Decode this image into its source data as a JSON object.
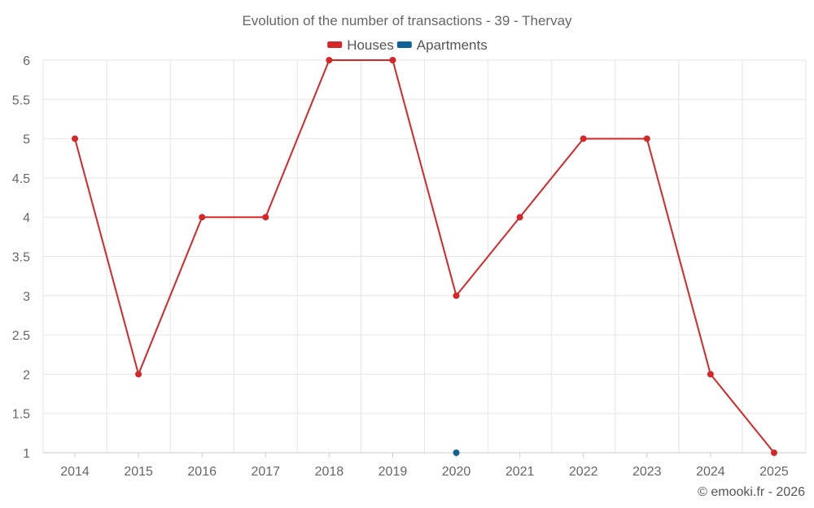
{
  "chart_data": {
    "type": "line",
    "title": "Evolution of the number of transactions - 39 - Thervay",
    "categories": [
      "2014",
      "2015",
      "2016",
      "2017",
      "2018",
      "2019",
      "2020",
      "2021",
      "2022",
      "2023",
      "2024",
      "2025"
    ],
    "y_ticks": [
      "1",
      "1.5",
      "2",
      "2.5",
      "3",
      "3.5",
      "4",
      "4.5",
      "5",
      "5.5",
      "6"
    ],
    "ylim": [
      1,
      6
    ],
    "grid": true,
    "legend_position": "top-center",
    "series": [
      {
        "name": "Houses",
        "color": "#d62728",
        "values": [
          5,
          2,
          4,
          4,
          6,
          6,
          3,
          4,
          5,
          5,
          2,
          1
        ]
      },
      {
        "name": "Apartments",
        "color": "#0d6396",
        "values": [
          null,
          null,
          null,
          null,
          null,
          null,
          1,
          null,
          null,
          null,
          null,
          null
        ]
      }
    ],
    "xlabel": "",
    "ylabel": ""
  },
  "credit": "© emooki.fr - 2026"
}
